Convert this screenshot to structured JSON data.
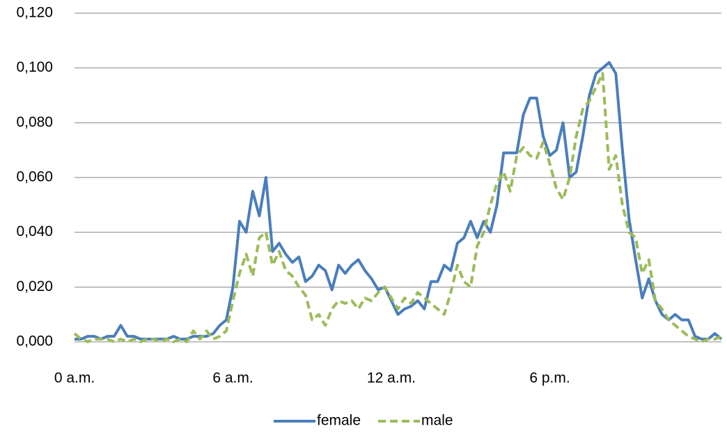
{
  "chart_data": {
    "type": "line",
    "x": [
      0,
      0.25,
      0.5,
      0.75,
      1,
      1.25,
      1.5,
      1.75,
      2,
      2.25,
      2.5,
      2.75,
      3,
      3.25,
      3.5,
      3.75,
      4,
      4.25,
      4.5,
      4.75,
      5,
      5.25,
      5.5,
      5.75,
      6,
      6.25,
      6.5,
      6.75,
      7,
      7.25,
      7.5,
      7.75,
      8,
      8.25,
      8.5,
      8.75,
      9,
      9.25,
      9.5,
      9.75,
      10,
      10.25,
      10.5,
      10.75,
      11,
      11.25,
      11.5,
      11.75,
      12,
      12.25,
      12.5,
      12.75,
      13,
      13.25,
      13.5,
      13.75,
      14,
      14.25,
      14.5,
      14.75,
      15,
      15.25,
      15.5,
      15.75,
      16,
      16.25,
      16.5,
      16.75,
      17,
      17.25,
      17.5,
      17.75,
      18,
      18.25,
      18.5,
      18.75,
      19,
      19.25,
      19.5,
      19.75,
      20,
      20.25,
      20.5,
      20.75,
      21,
      21.25,
      21.5,
      21.75,
      22,
      22.25,
      22.5,
      22.75,
      23,
      23.25,
      23.5,
      23.75,
      24,
      24.25,
      24.5
    ],
    "series": [
      {
        "name": "female",
        "color": "#4a7ebb",
        "dash": false,
        "values": [
          0.001,
          0.001,
          0.002,
          0.002,
          0.001,
          0.002,
          0.002,
          0.006,
          0.002,
          0.002,
          0.001,
          0.001,
          0.001,
          0.001,
          0.001,
          0.002,
          0.001,
          0.001,
          0.002,
          0.002,
          0.002,
          0.003,
          0.006,
          0.008,
          0.02,
          0.044,
          0.04,
          0.055,
          0.046,
          0.06,
          0.033,
          0.036,
          0.032,
          0.029,
          0.031,
          0.022,
          0.024,
          0.028,
          0.026,
          0.019,
          0.028,
          0.025,
          0.028,
          0.03,
          0.026,
          0.023,
          0.019,
          0.02,
          0.015,
          0.01,
          0.012,
          0.013,
          0.015,
          0.012,
          0.022,
          0.022,
          0.028,
          0.026,
          0.036,
          0.038,
          0.044,
          0.038,
          0.044,
          0.04,
          0.05,
          0.069,
          0.069,
          0.069,
          0.083,
          0.089,
          0.089,
          0.075,
          0.068,
          0.07,
          0.08,
          0.06,
          0.062,
          0.075,
          0.09,
          0.098,
          0.1,
          0.102,
          0.098,
          0.07,
          0.045,
          0.03,
          0.016,
          0.023,
          0.015,
          0.01,
          0.008,
          0.01,
          0.008,
          0.008,
          0.002,
          0.001,
          0.001,
          0.003,
          0.001
        ]
      },
      {
        "name": "male",
        "color": "#9bbb59",
        "dash": true,
        "values": [
          0.003,
          0.001,
          0,
          0.001,
          0.001,
          0.001,
          0,
          0.001,
          0,
          0.001,
          0,
          0.001,
          0.001,
          0,
          0.001,
          0,
          0.001,
          0,
          0.004,
          0.001,
          0.004,
          0.001,
          0.002,
          0.004,
          0.015,
          0.025,
          0.032,
          0.024,
          0.038,
          0.04,
          0.028,
          0.033,
          0.026,
          0.024,
          0.02,
          0.017,
          0.008,
          0.01,
          0.006,
          0.012,
          0.015,
          0.014,
          0.015,
          0.012,
          0.016,
          0.015,
          0.018,
          0.02,
          0.016,
          0.012,
          0.016,
          0.014,
          0.018,
          0.016,
          0.014,
          0.012,
          0.01,
          0.018,
          0.028,
          0.022,
          0.02,
          0.035,
          0.04,
          0.05,
          0.058,
          0.062,
          0.055,
          0.068,
          0.071,
          0.068,
          0.067,
          0.073,
          0.065,
          0.056,
          0.052,
          0.06,
          0.075,
          0.085,
          0.088,
          0.093,
          0.098,
          0.063,
          0.068,
          0.05,
          0.04,
          0.038,
          0.025,
          0.03,
          0.015,
          0.012,
          0.008,
          0.006,
          0.004,
          0.002,
          0.001,
          0,
          0.001,
          0.001,
          0.002
        ]
      }
    ],
    "xlim": [
      0,
      24.5
    ],
    "xticks": [
      {
        "value": 0,
        "label": "0 a.m."
      },
      {
        "value": 6,
        "label": "6 a.m."
      },
      {
        "value": 12,
        "label": "12 a.m."
      },
      {
        "value": 18,
        "label": "6 p.m."
      }
    ],
    "ylim": [
      0,
      0.12
    ],
    "yticks": [
      {
        "value": 0,
        "label": "0,000"
      },
      {
        "value": 0.02,
        "label": "0,020"
      },
      {
        "value": 0.04,
        "label": "0,040"
      },
      {
        "value": 0.06,
        "label": "0,060"
      },
      {
        "value": 0.08,
        "label": "0,080"
      },
      {
        "value": 0.1,
        "label": "0,100"
      },
      {
        "value": 0.12,
        "label": "0,120"
      }
    ],
    "grid": true,
    "legend": "bottom"
  }
}
